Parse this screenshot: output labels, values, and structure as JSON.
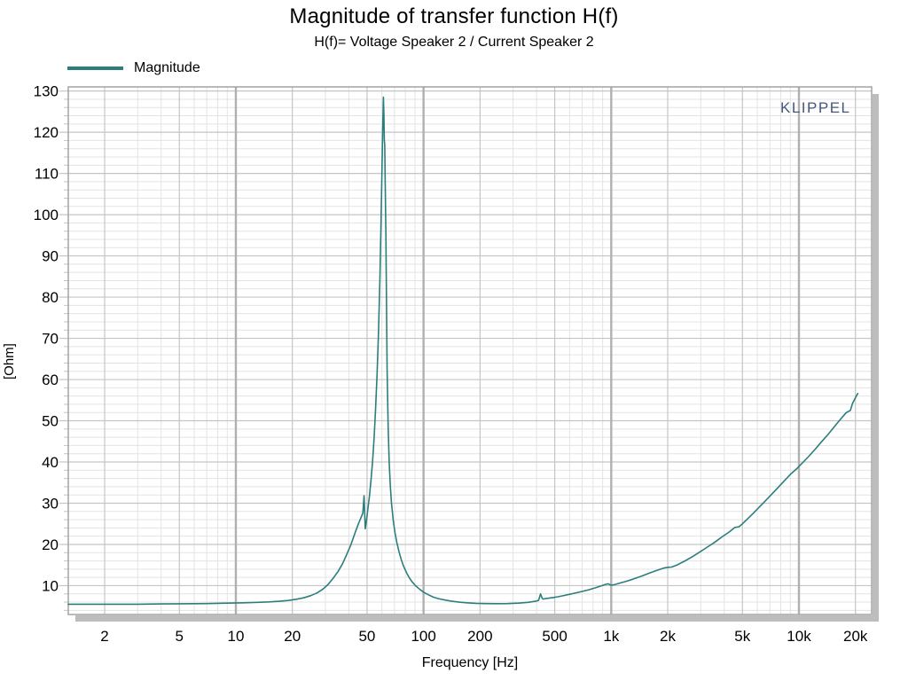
{
  "chart_data": {
    "type": "line",
    "title": "Magnitude of transfer function H(f)",
    "subtitle": "H(f)= Voltage Speaker 2 / Current Speaker 2",
    "xlabel": "Frequency [Hz]",
    "ylabel": "[Ohm]",
    "watermark": "KLIPPEL",
    "x_scale": "log",
    "grid": true,
    "legend_position": "top-left",
    "xlim": [
      1.28,
      24400
    ],
    "ylim": [
      3,
      131
    ],
    "x_ticks": [
      2,
      5,
      10,
      20,
      50,
      100,
      200,
      500,
      1000,
      2000,
      5000,
      10000,
      20000
    ],
    "x_tick_labels": [
      "2",
      "5",
      "10",
      "20",
      "50",
      "100",
      "200",
      "500",
      "1k",
      "2k",
      "5k",
      "10k",
      "20k"
    ],
    "x_decade_lines": [
      10,
      100,
      1000,
      10000
    ],
    "y_ticks": [
      10,
      20,
      30,
      40,
      50,
      60,
      70,
      80,
      90,
      100,
      110,
      120,
      130
    ],
    "y_minor_step": 2,
    "legend": [
      {
        "name": "Magnitude",
        "color": "#2b7e7c"
      }
    ],
    "style": {
      "curve": "#2b7e7c",
      "watermark_color": "#46567c",
      "grid_major": "#c5c5c5",
      "grid_minor": "#e3e3e3",
      "grid_decade": "#b0b0b0",
      "border": "#a3a3a3",
      "shadow": "#bdbdbd",
      "text": "#000000"
    },
    "series": [
      {
        "name": "Magnitude",
        "color": "#2b7e7c",
        "points": [
          [
            1.28,
            5.5
          ],
          [
            2,
            5.5
          ],
          [
            3,
            5.5
          ],
          [
            4,
            5.55
          ],
          [
            5,
            5.6
          ],
          [
            7,
            5.65
          ],
          [
            9,
            5.75
          ],
          [
            11,
            5.85
          ],
          [
            13,
            5.95
          ],
          [
            15,
            6.05
          ],
          [
            17,
            6.2
          ],
          [
            19,
            6.4
          ],
          [
            21,
            6.7
          ],
          [
            23,
            7.05
          ],
          [
            25,
            7.55
          ],
          [
            27,
            8.2
          ],
          [
            29,
            9.1
          ],
          [
            31,
            10.3
          ],
          [
            33,
            11.8
          ],
          [
            35,
            13.4
          ],
          [
            37,
            15.3
          ],
          [
            39,
            17.6
          ],
          [
            41,
            19.9
          ],
          [
            43,
            22.6
          ],
          [
            45,
            25.0
          ],
          [
            46.5,
            26.6
          ],
          [
            47.5,
            27.6
          ],
          [
            48.2,
            31.8
          ],
          [
            48.9,
            23.8
          ],
          [
            49.6,
            25.6
          ],
          [
            50.5,
            28.5
          ],
          [
            51.5,
            31.8
          ],
          [
            52.5,
            35.6
          ],
          [
            53.5,
            40.2
          ],
          [
            54.5,
            45.8
          ],
          [
            55.5,
            52.6
          ],
          [
            56.5,
            61
          ],
          [
            57.5,
            71
          ],
          [
            58.5,
            84
          ],
          [
            59.3,
            97
          ],
          [
            60,
            110
          ],
          [
            60.6,
            121
          ],
          [
            61.1,
            128.5
          ],
          [
            61.5,
            124
          ],
          [
            61.8,
            118
          ],
          [
            62.1,
            117
          ],
          [
            62.5,
            108
          ],
          [
            63,
            95
          ],
          [
            63.5,
            78
          ],
          [
            64,
            62
          ],
          [
            64.8,
            48
          ],
          [
            65.6,
            40
          ],
          [
            66.5,
            34.5
          ],
          [
            67.5,
            30
          ],
          [
            69,
            25.8
          ],
          [
            70.5,
            22.8
          ],
          [
            72,
            20.5
          ],
          [
            74,
            18.2
          ],
          [
            76,
            16.4
          ],
          [
            78,
            14.9
          ],
          [
            81,
            13.2
          ],
          [
            84,
            11.9
          ],
          [
            87,
            10.9
          ],
          [
            91,
            9.9
          ],
          [
            95,
            9.2
          ],
          [
            100,
            8.4
          ],
          [
            106,
            7.8
          ],
          [
            113,
            7.2
          ],
          [
            120,
            6.85
          ],
          [
            130,
            6.5
          ],
          [
            142,
            6.2
          ],
          [
            155,
            6.0
          ],
          [
            170,
            5.85
          ],
          [
            190,
            5.72
          ],
          [
            215,
            5.65
          ],
          [
            245,
            5.62
          ],
          [
            280,
            5.65
          ],
          [
            320,
            5.75
          ],
          [
            360,
            5.95
          ],
          [
            395,
            6.2
          ],
          [
            410,
            6.45
          ],
          [
            420,
            8.0
          ],
          [
            428,
            7.0
          ],
          [
            432,
            6.75
          ],
          [
            445,
            6.85
          ],
          [
            465,
            6.95
          ],
          [
            490,
            7.1
          ],
          [
            520,
            7.3
          ],
          [
            560,
            7.6
          ],
          [
            600,
            7.9
          ],
          [
            650,
            8.25
          ],
          [
            700,
            8.6
          ],
          [
            760,
            9.0
          ],
          [
            820,
            9.45
          ],
          [
            880,
            9.9
          ],
          [
            930,
            10.3
          ],
          [
            960,
            10.45
          ],
          [
            1000,
            10.1
          ],
          [
            1050,
            10.3
          ],
          [
            1120,
            10.65
          ],
          [
            1200,
            11.05
          ],
          [
            1300,
            11.55
          ],
          [
            1450,
            12.3
          ],
          [
            1600,
            13.05
          ],
          [
            1750,
            13.7
          ],
          [
            1900,
            14.25
          ],
          [
            2000,
            14.45
          ],
          [
            2100,
            14.5
          ],
          [
            2250,
            15.05
          ],
          [
            2450,
            15.9
          ],
          [
            2700,
            17.0
          ],
          [
            2950,
            18.1
          ],
          [
            3250,
            19.35
          ],
          [
            3550,
            20.5
          ],
          [
            3900,
            21.85
          ],
          [
            4250,
            23.0
          ],
          [
            4550,
            24.1
          ],
          [
            4800,
            24.3
          ],
          [
            5000,
            25.0
          ],
          [
            5300,
            26.1
          ],
          [
            5700,
            27.5
          ],
          [
            6100,
            28.9
          ],
          [
            6600,
            30.5
          ],
          [
            7100,
            32.0
          ],
          [
            7700,
            33.7
          ],
          [
            8300,
            35.3
          ],
          [
            9000,
            37.0
          ],
          [
            9700,
            38.3
          ],
          [
            10500,
            39.9
          ],
          [
            11300,
            41.4
          ],
          [
            12200,
            43.1
          ],
          [
            13200,
            44.9
          ],
          [
            14300,
            46.7
          ],
          [
            15400,
            48.5
          ],
          [
            16600,
            50.3
          ],
          [
            17800,
            51.9
          ],
          [
            18400,
            52.3
          ],
          [
            18800,
            52.5
          ],
          [
            19300,
            54.2
          ],
          [
            19900,
            55.4
          ],
          [
            20400,
            56.3
          ],
          [
            20600,
            56.6
          ]
        ]
      }
    ]
  }
}
